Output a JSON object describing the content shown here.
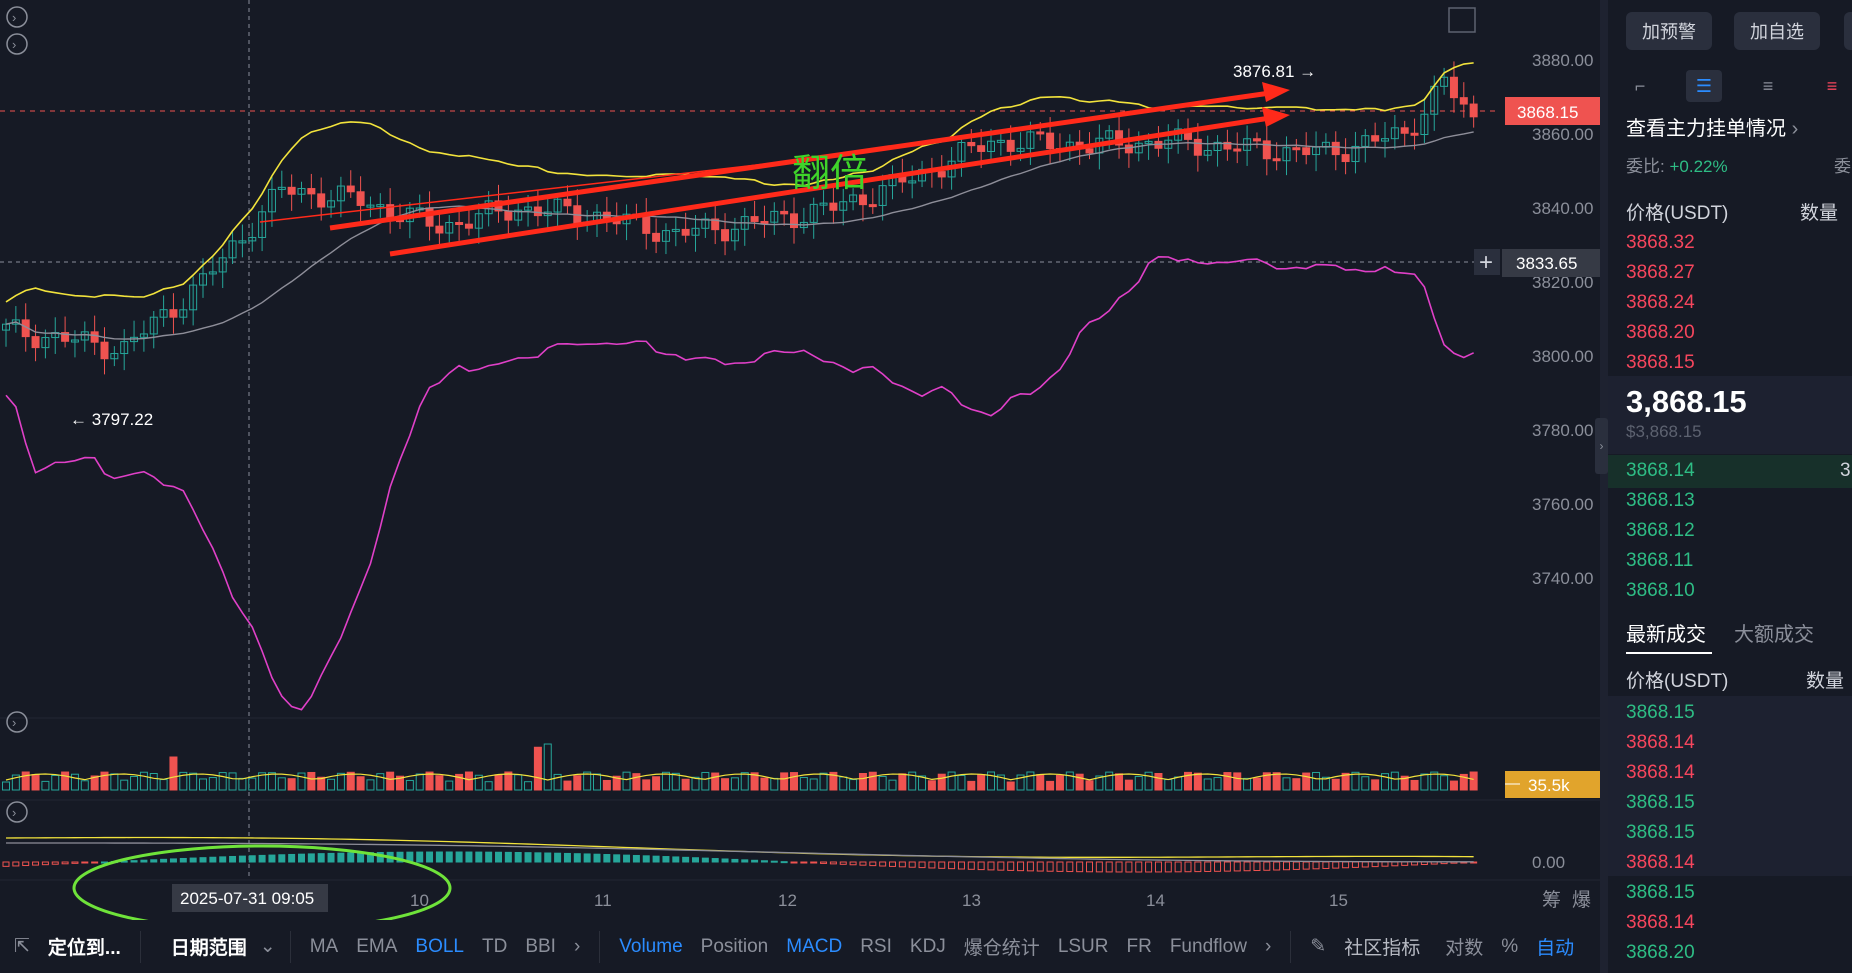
{
  "chart": {
    "price_axis": [
      "3880.00",
      "3860.00",
      "3840.00",
      "3820.00",
      "3800.00",
      "3780.00",
      "3760.00",
      "3740.00"
    ],
    "time_axis": [
      "10",
      "11",
      "12",
      "13",
      "14",
      "15"
    ],
    "current_price_tag": "3868.15",
    "crosshair_price_tag": "3833.65",
    "crosshair_time_tag": "2025-07-31 09:05",
    "high_label": "3876.81 →",
    "low_label": "← 3797.22",
    "annotation_text": "翻倍",
    "volume_tag": "35.5k",
    "macd_axis": "0.00",
    "axis_right_labels": [
      "筹",
      "爆"
    ],
    "colors": {
      "up": "#26a69a",
      "down": "#ef5350",
      "boll_upper": "#f2e33c",
      "boll_lower": "#e040c8",
      "boll_mid": "#8e8e99",
      "arrow": "#ff2a1a",
      "ellipse": "#6fe33a"
    }
  },
  "toolbar": {
    "locate": "定位到...",
    "date_range": "日期范围",
    "overlays": [
      "MA",
      "EMA",
      "BOLL",
      "TD",
      "BBI"
    ],
    "active_overlay": "BOLL",
    "indicators": [
      "Volume",
      "Position",
      "MACD",
      "RSI",
      "KDJ",
      "爆仓统计",
      "LSUR",
      "FR",
      "Fundflow"
    ],
    "active_indicators": [
      "Volume",
      "MACD"
    ],
    "community": "社区指标",
    "log": "对数",
    "percent": "%",
    "auto": "自动"
  },
  "panel": {
    "btn_alert": "加预警",
    "btn_watch": "加自选",
    "main_orders": "查看主力挂单情况",
    "ratio_label": "委比:",
    "ratio_value": "+0.22%",
    "ratio_cut": "委",
    "col_price": "价格(USDT)",
    "col_qty": "数量",
    "asks": [
      "3868.32",
      "3868.27",
      "3868.24",
      "3868.20",
      "3868.15"
    ],
    "last_price": "3,868.15",
    "last_price_usd": "$3,868.15",
    "bids": [
      "3868.14",
      "3868.13",
      "3868.12",
      "3868.11",
      "3868.10"
    ],
    "bid_first_qty": "3",
    "tab_latest": "最新成交",
    "tab_large": "大额成交",
    "trades_col_price": "价格(USDT)",
    "trades_col_qty": "数量",
    "trades": [
      {
        "p": "3868.15",
        "side": "buy"
      },
      {
        "p": "3868.14",
        "side": "sell"
      },
      {
        "p": "3868.14",
        "side": "sell"
      },
      {
        "p": "3868.15",
        "side": "buy"
      },
      {
        "p": "3868.15",
        "side": "buy"
      },
      {
        "p": "3868.14",
        "side": "sell"
      },
      {
        "p": "3868.15",
        "side": "buy"
      },
      {
        "p": "3868.14",
        "side": "sell"
      },
      {
        "p": "3868.20",
        "side": "buy"
      }
    ]
  }
}
